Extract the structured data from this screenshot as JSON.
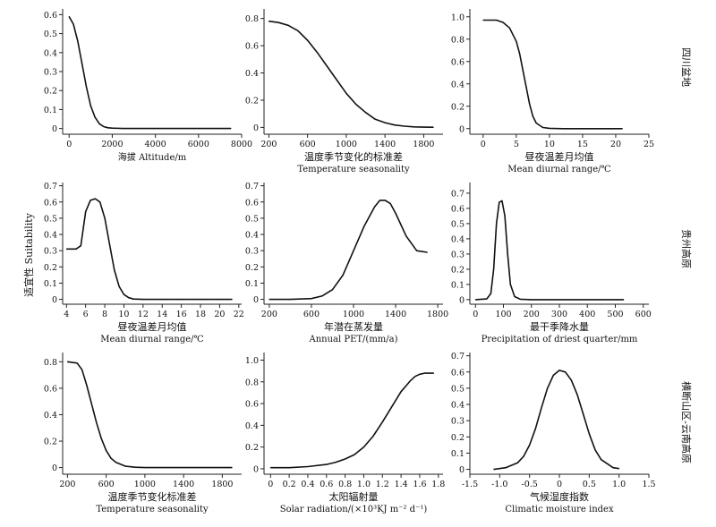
{
  "figure": {
    "ylabel": "适宜性 Suitability",
    "row_labels": [
      "四川盆地",
      "贵州高原",
      "横断山区-云南高原"
    ]
  },
  "chart_data": [
    {
      "type": "line",
      "row": 0,
      "col": 0,
      "xlabel_cn": "",
      "xlabel_en": "海拔 Altitude/m",
      "xlim": [
        -300,
        8000
      ],
      "ylim": [
        -0.03,
        0.63
      ],
      "xticks": [
        "0",
        "2000",
        "4000",
        "6000",
        "8000"
      ],
      "xtick_values": [
        0,
        2000,
        4000,
        6000,
        8000
      ],
      "yticks": [
        "0",
        "0.1",
        "0.2",
        "0.3",
        "0.4",
        "0.5",
        "0.6"
      ],
      "ytick_values": [
        0,
        0.1,
        0.2,
        0.3,
        0.4,
        0.5,
        0.6
      ],
      "x": [
        0,
        200,
        400,
        600,
        800,
        1000,
        1200,
        1400,
        1600,
        1800,
        2000,
        2500,
        3000,
        4000,
        5000,
        6000,
        7000,
        7500
      ],
      "y": [
        0.59,
        0.55,
        0.46,
        0.34,
        0.22,
        0.12,
        0.06,
        0.025,
        0.01,
        0.004,
        0.002,
        0.0,
        0.0,
        0.0,
        0.0,
        0.0,
        0.0,
        0.0
      ]
    },
    {
      "type": "line",
      "row": 0,
      "col": 1,
      "xlabel_cn": "温度季节变化的标准差",
      "xlabel_en": "Temperature seasonality",
      "xlim": [
        150,
        2000
      ],
      "ylim": [
        -0.05,
        0.87
      ],
      "xticks": [
        "200",
        "600",
        "1000",
        "1400",
        "1800"
      ],
      "xtick_values": [
        200,
        600,
        1000,
        1400,
        1800
      ],
      "yticks": [
        "0",
        "0.2",
        "0.4",
        "0.6",
        "0.8"
      ],
      "ytick_values": [
        0,
        0.2,
        0.4,
        0.6,
        0.8
      ],
      "x": [
        200,
        300,
        400,
        500,
        600,
        700,
        800,
        900,
        1000,
        1100,
        1200,
        1300,
        1400,
        1500,
        1600,
        1700,
        1800,
        1900
      ],
      "y": [
        0.78,
        0.77,
        0.75,
        0.71,
        0.64,
        0.55,
        0.45,
        0.35,
        0.25,
        0.17,
        0.11,
        0.06,
        0.035,
        0.018,
        0.009,
        0.004,
        0.002,
        0.001
      ]
    },
    {
      "type": "line",
      "row": 0,
      "col": 2,
      "xlabel_cn": "昼夜温差月均值",
      "xlabel_en": "Mean diurnal range/℃",
      "xlim": [
        -2,
        25
      ],
      "ylim": [
        -0.05,
        1.07
      ],
      "xticks": [
        "0",
        "5",
        "10",
        "15",
        "20",
        "25"
      ],
      "xtick_values": [
        0,
        5,
        10,
        15,
        20,
        25
      ],
      "yticks": [
        "0",
        "0.2",
        "0.4",
        "0.6",
        "0.8",
        "1.0"
      ],
      "ytick_values": [
        0,
        0.2,
        0.4,
        0.6,
        0.8,
        1.0
      ],
      "x": [
        0,
        2,
        3,
        4,
        5,
        5.5,
        6,
        6.5,
        7,
        7.5,
        8,
        9,
        10,
        12,
        15,
        18,
        21
      ],
      "y": [
        0.97,
        0.97,
        0.95,
        0.9,
        0.78,
        0.67,
        0.52,
        0.37,
        0.22,
        0.11,
        0.05,
        0.01,
        0.003,
        0.0,
        0.0,
        0.0,
        0.0
      ]
    },
    {
      "type": "line",
      "row": 1,
      "col": 0,
      "xlabel_cn": "昼夜温差月均值",
      "xlabel_en": "Mean diurnal range/℃",
      "xlim": [
        3.6,
        22.3
      ],
      "ylim": [
        -0.03,
        0.72
      ],
      "xticks": [
        "4",
        "6",
        "8",
        "10",
        "12",
        "14",
        "16",
        "18",
        "20",
        "22"
      ],
      "xtick_values": [
        4,
        6,
        8,
        10,
        12,
        14,
        16,
        18,
        20,
        22
      ],
      "yticks": [
        "0",
        "0.1",
        "0.2",
        "0.3",
        "0.4",
        "0.5",
        "0.6",
        "0.7"
      ],
      "ytick_values": [
        0,
        0.1,
        0.2,
        0.3,
        0.4,
        0.5,
        0.6,
        0.7
      ],
      "x": [
        4,
        5,
        5.5,
        6,
        6.5,
        7,
        7.5,
        8,
        8.5,
        9,
        9.5,
        10,
        10.5,
        11,
        12,
        14,
        16,
        18,
        20,
        21.3
      ],
      "y": [
        0.31,
        0.31,
        0.33,
        0.54,
        0.61,
        0.62,
        0.6,
        0.5,
        0.34,
        0.18,
        0.08,
        0.03,
        0.01,
        0.002,
        0.0,
        0.0,
        0.0,
        0.0,
        0.0,
        0.0
      ]
    },
    {
      "type": "line",
      "row": 1,
      "col": 1,
      "xlabel_cn": "年潜在蒸发量",
      "xlabel_en": "Annual PET/(mm/a)",
      "xlim": [
        150,
        1850
      ],
      "ylim": [
        -0.03,
        0.72
      ],
      "xticks": [
        "200",
        "600",
        "1000",
        "1400",
        "1800"
      ],
      "xtick_values": [
        200,
        600,
        1000,
        1400,
        1800
      ],
      "yticks": [
        "0",
        "0.1",
        "0.2",
        "0.3",
        "0.4",
        "0.5",
        "0.6",
        "0.7"
      ],
      "ytick_values": [
        0,
        0.1,
        0.2,
        0.3,
        0.4,
        0.5,
        0.6,
        0.7
      ],
      "x": [
        200,
        400,
        600,
        700,
        800,
        900,
        1000,
        1100,
        1200,
        1250,
        1300,
        1350,
        1400,
        1500,
        1600,
        1700
      ],
      "y": [
        0.0,
        0.0,
        0.005,
        0.02,
        0.06,
        0.15,
        0.3,
        0.45,
        0.57,
        0.61,
        0.61,
        0.59,
        0.53,
        0.39,
        0.3,
        0.29
      ]
    },
    {
      "type": "line",
      "row": 1,
      "col": 2,
      "xlabel_cn": "最干季降水量",
      "xlabel_en": "Precipitation of driest quarter/mm",
      "xlim": [
        -20,
        620
      ],
      "ylim": [
        -0.03,
        0.77
      ],
      "xticks": [
        "0",
        "100",
        "200",
        "300",
        "400",
        "500",
        "600"
      ],
      "xtick_values": [
        0,
        100,
        200,
        300,
        400,
        500,
        600
      ],
      "yticks": [
        "0",
        "0.1",
        "0.2",
        "0.3",
        "0.4",
        "0.5",
        "0.6",
        "0.7"
      ],
      "ytick_values": [
        0,
        0.1,
        0.2,
        0.3,
        0.4,
        0.5,
        0.6,
        0.7
      ],
      "x": [
        0,
        40,
        55,
        65,
        75,
        85,
        95,
        105,
        115,
        125,
        140,
        160,
        200,
        300,
        400,
        530
      ],
      "y": [
        0.0,
        0.005,
        0.04,
        0.2,
        0.5,
        0.64,
        0.65,
        0.55,
        0.3,
        0.1,
        0.02,
        0.003,
        0.0,
        0.0,
        0.0,
        0.0
      ]
    },
    {
      "type": "line",
      "row": 2,
      "col": 0,
      "xlabel_cn": "温度季节变化标准差",
      "xlabel_en": "Temperature seasonality",
      "xlim": [
        150,
        2000
      ],
      "ylim": [
        -0.05,
        0.87
      ],
      "xticks": [
        "200",
        "600",
        "1000",
        "1400",
        "1800"
      ],
      "xtick_values": [
        200,
        600,
        1000,
        1400,
        1800
      ],
      "yticks": [
        "0",
        "0.2",
        "0.4",
        "0.6",
        "0.8"
      ],
      "ytick_values": [
        0,
        0.2,
        0.4,
        0.6,
        0.8
      ],
      "x": [
        200,
        300,
        350,
        400,
        450,
        500,
        550,
        600,
        650,
        700,
        800,
        900,
        1000,
        1200,
        1500,
        1900
      ],
      "y": [
        0.8,
        0.79,
        0.74,
        0.62,
        0.48,
        0.34,
        0.22,
        0.13,
        0.07,
        0.04,
        0.01,
        0.003,
        0.0,
        0.0,
        0.0,
        0.0
      ]
    },
    {
      "type": "line",
      "row": 2,
      "col": 1,
      "xlabel_cn": "太阳辐射量",
      "xlabel_en": "Solar radiation/(×10³KJ m⁻² d⁻¹)",
      "xlim": [
        -0.07,
        1.85
      ],
      "ylim": [
        -0.05,
        1.07
      ],
      "xticks": [
        "0",
        "0.2",
        "0.4",
        "0.6",
        "0.8",
        "1.0",
        "1.2",
        "1.4",
        "1.6",
        "1.8"
      ],
      "xtick_values": [
        0,
        0.2,
        0.4,
        0.6,
        0.8,
        1.0,
        1.2,
        1.4,
        1.6,
        1.8
      ],
      "yticks": [
        "0",
        "0.2",
        "0.4",
        "0.6",
        "0.8",
        "1.0"
      ],
      "ytick_values": [
        0,
        0.2,
        0.4,
        0.6,
        0.8,
        1.0
      ],
      "x": [
        0,
        0.2,
        0.4,
        0.6,
        0.7,
        0.8,
        0.9,
        1.0,
        1.1,
        1.2,
        1.3,
        1.4,
        1.5,
        1.55,
        1.6,
        1.65,
        1.75
      ],
      "y": [
        0.01,
        0.01,
        0.02,
        0.04,
        0.06,
        0.09,
        0.13,
        0.2,
        0.3,
        0.43,
        0.57,
        0.71,
        0.81,
        0.85,
        0.87,
        0.88,
        0.88
      ]
    },
    {
      "type": "line",
      "row": 2,
      "col": 2,
      "xlabel_cn": "气候湿度指数",
      "xlabel_en": "Climatic moisture index",
      "xlim": [
        -1.5,
        1.5
      ],
      "ylim": [
        -0.03,
        0.72
      ],
      "xticks": [
        "-1.5",
        "-1.0",
        "-0.5",
        "0",
        "0.5",
        "1.0",
        "1.5"
      ],
      "xtick_values": [
        -1.5,
        -1.0,
        -0.5,
        0,
        0.5,
        1.0,
        1.5
      ],
      "yticks": [
        "0",
        "0.1",
        "0.2",
        "0.3",
        "0.4",
        "0.5",
        "0.6",
        "0.7"
      ],
      "ytick_values": [
        0,
        0.1,
        0.2,
        0.3,
        0.4,
        0.5,
        0.6,
        0.7
      ],
      "x": [
        -1.1,
        -0.9,
        -0.7,
        -0.6,
        -0.5,
        -0.4,
        -0.3,
        -0.2,
        -0.1,
        0,
        0.1,
        0.2,
        0.3,
        0.4,
        0.5,
        0.6,
        0.7,
        0.9,
        1.0
      ],
      "y": [
        0.0,
        0.01,
        0.04,
        0.08,
        0.15,
        0.25,
        0.38,
        0.5,
        0.58,
        0.61,
        0.6,
        0.55,
        0.46,
        0.34,
        0.22,
        0.12,
        0.06,
        0.01,
        0.005
      ]
    }
  ]
}
